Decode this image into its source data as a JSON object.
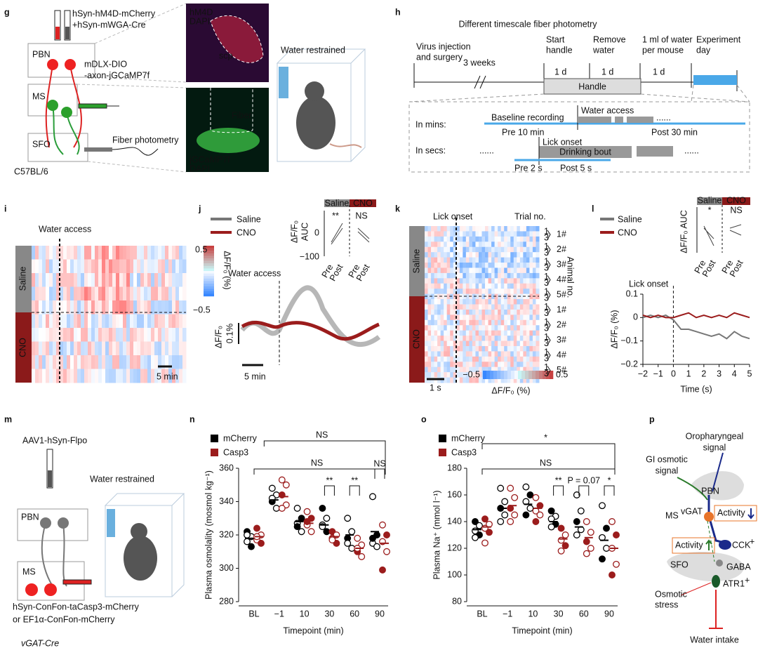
{
  "labels": [
    "g",
    "h",
    "i",
    "j",
    "k",
    "l",
    "m",
    "n",
    "o",
    "p"
  ],
  "g": {
    "texts": [
      "hSyn-hM4D-mCherry",
      "+hSyn-mWGA-Cre",
      "PBN",
      "MS",
      "SFO",
      "C57BL/6",
      "mDLX-DIO",
      "-axon-jGCaMP7f",
      "Fiber photometry",
      "hM4D",
      "DAPI",
      "scp",
      "Fiber",
      "jGCaMP7f",
      "DAPI",
      "Water restrained"
    ]
  },
  "h": {
    "title": "Different timescale fiber photometry",
    "texts": [
      "Virus injection",
      "and surgery",
      "3 weeks",
      "Start",
      "handle",
      "1 d",
      "Remove",
      "water",
      "1 d",
      "1 ml of water",
      "per mouse",
      "1 d",
      "Experiment",
      "day",
      "Handle",
      "In mins:",
      "Baseline recording",
      "Water access",
      "Pre 10 min",
      "Post 30 min",
      "......",
      "In secs:",
      "......",
      "Lick onset",
      "Drinking bout",
      "......",
      "Pre 2 s",
      "Post 5 s"
    ]
  },
  "i": {
    "texts": [
      "Water access",
      "Saline",
      "CNO",
      "0.5",
      "−0.5",
      "ΔF/F₀ (%)",
      "5 min"
    ]
  },
  "j": {
    "texts": [
      "Saline",
      "CNO",
      "Water access",
      "ΔF/F₀",
      "0.1%",
      "5 min",
      "Saline",
      "CNO",
      "**",
      "NS",
      "ΔF/F₀",
      "AUC",
      "0",
      "−100",
      "Pre",
      "Post",
      "Pre",
      "Post"
    ]
  },
  "k": {
    "texts": [
      "Lick onset",
      "Trial no.",
      "Animal no.",
      "Saline",
      "CNO",
      "1 s",
      "−0.5",
      "0.5",
      "ΔF/F₀ (%)",
      "1",
      "3",
      "1#",
      "2#",
      "3#",
      "4#",
      "5#",
      "1#",
      "2#",
      "3#",
      "4#",
      "5#"
    ]
  },
  "l": {
    "texts": [
      "Saline",
      "CNO",
      "*",
      "NS",
      "ΔF/F₀ AUC",
      "Pre",
      "Post",
      "Pre",
      "Post"
    ]
  },
  "m": {
    "texts": [
      "AAV1-hSyn-Flpo",
      "Water restrained",
      "PBN",
      "MS",
      "hSyn-ConFon-taCasp3-mCherry",
      "or EF1α-ConFon-mCherry",
      "vGAT-Cre"
    ]
  },
  "p": {
    "texts": [
      "Oropharyngeal",
      "signal",
      "GI osmotic",
      "signal",
      "PBN",
      "MS",
      "vGAT",
      "Activity",
      "Activity",
      "CCK",
      "+",
      "SFO",
      "GABA",
      "ATR1",
      "+",
      "Osmotic",
      "stress",
      "Water intake"
    ]
  },
  "chart_data": [
    {
      "type": "line",
      "xlabel": "Time (s)",
      "ylabel": "ΔF/F₀ (%)",
      "annotation": "Lick onset",
      "x": [
        -2,
        -1.5,
        -1,
        -0.5,
        0,
        0.5,
        1,
        1.5,
        2,
        2.5,
        3,
        3.5,
        4,
        4.5,
        5
      ],
      "series": [
        {
          "name": "Saline",
          "color": "#777777",
          "values": [
            0,
            0.01,
            0,
            0.01,
            -0.01,
            -0.05,
            -0.05,
            -0.06,
            -0.07,
            -0.08,
            -0.07,
            -0.09,
            -0.06,
            -0.08,
            -0.09
          ]
        },
        {
          "name": "CNO",
          "color": "#9b1c1c",
          "values": [
            0.01,
            0,
            0.01,
            0,
            0,
            0.01,
            0.02,
            0,
            0.01,
            0,
            0.01,
            0,
            0.02,
            0.01,
            0
          ]
        }
      ],
      "xlim": [
        -2,
        5
      ],
      "xticks": [
        {
          "value": -2,
          "label": "−2"
        },
        {
          "value": -1,
          "label": "−1"
        },
        0,
        1,
        2,
        3,
        4,
        5
      ],
      "ylim": [
        -0.2,
        0.1
      ],
      "yticks": [
        {
          "value": -0.2,
          "label": "−0.2"
        },
        {
          "value": -0.1,
          "label": "−0.1"
        },
        0,
        0.1
      ]
    },
    {
      "type": "dot",
      "xlabel": "Timepoint (min)",
      "ylabel": "Plasma osmolality (mosmol kg⁻¹)",
      "categories": [
        "BL",
        "−1",
        "10",
        "30",
        "60",
        "90"
      ],
      "series": [
        {
          "name": "mCherry",
          "color": "#000000",
          "values": [
            318,
            341,
            328,
            326,
            320,
            322
          ],
          "points": [
            [
              322,
              319,
              316,
              313,
              320
            ],
            [
              348,
              344,
              340,
              336,
              342
            ],
            [
              336,
              330,
              327,
              322,
              325
            ],
            [
              336,
              330,
              326,
              322,
              325
            ],
            [
              330,
              322,
              318,
              312,
              315
            ],
            [
              343,
              320,
              315,
              313,
              318
            ]
          ]
        },
        {
          "name": "Casp3",
          "color": "#9b1c1c",
          "values": [
            319,
            343,
            327,
            319,
            312,
            315
          ],
          "points": [
            [
              324,
              320,
              317,
              315,
              319
            ],
            [
              353,
              350,
              344,
              338,
              336
            ],
            [
              334,
              330,
              326,
              322,
              328
            ],
            [
              322,
              320,
              318,
              315,
              317
            ],
            [
              318,
              314,
              310,
              307,
              312
            ],
            [
              326,
              320,
              316,
              310,
              299
            ]
          ]
        }
      ],
      "annotations": [
        "NS",
        "NS",
        "**",
        "**",
        "NS"
      ],
      "ylim": [
        280,
        360
      ],
      "yticks": [
        280,
        300,
        320,
        340,
        360
      ]
    },
    {
      "type": "dot",
      "xlabel": "Timepoint (min)",
      "ylabel": "Plasma Na⁺ (mmol l⁻¹)",
      "categories": [
        "BL",
        "−1",
        "10",
        "30",
        "60",
        "90"
      ],
      "series": [
        {
          "name": "mCherry",
          "color": "#000000",
          "values": [
            134,
            150,
            153,
            140,
            136,
            126
          ],
          "points": [
            [
              140,
              137,
              133,
              130,
              128
            ],
            [
              165,
              155,
              150,
              145,
              140
            ],
            [
              166,
              160,
              155,
              150,
              145
            ],
            [
              148,
              144,
              142,
              138,
              136
            ],
            [
              160,
              148,
              140,
              134,
              130
            ],
            [
              152,
              135,
              128,
              120,
              112
            ]
          ]
        },
        {
          "name": "Casp3",
          "color": "#9b1c1c",
          "values": [
            136,
            152,
            150,
            127,
            128,
            120
          ],
          "points": [
            [
              142,
              138,
              135,
              132,
              124
            ],
            [
              165,
              158,
              150,
              145,
              140
            ],
            [
              158,
              152,
              148,
              145,
              140
            ],
            [
              135,
              130,
              126,
              122,
              118
            ],
            [
              140,
              132,
              125,
              120,
              116
            ],
            [
              140,
              130,
              120,
              108,
              100
            ]
          ]
        }
      ],
      "annotations": [
        "*",
        "NS",
        "**",
        "P = 0.07",
        "*"
      ],
      "ylim": [
        80,
        180
      ],
      "yticks": [
        80,
        100,
        120,
        140,
        160,
        180
      ]
    }
  ]
}
